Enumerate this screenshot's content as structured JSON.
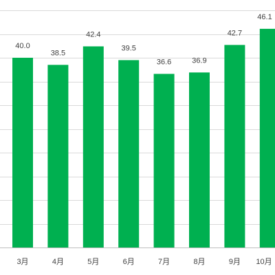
{
  "chart_data": {
    "type": "bar",
    "categories": [
      "3月",
      "4月",
      "5月",
      "6月",
      "7月",
      "8月",
      "9月",
      "10月"
    ],
    "values": [
      40.0,
      38.5,
      42.4,
      39.5,
      36.6,
      36.9,
      42.7,
      46.1
    ],
    "data_labels": [
      "40.0",
      "38.5",
      "42.4",
      "39.5",
      "36.6",
      "36.9",
      "42.7",
      "46.1"
    ],
    "ylim": [
      0,
      50
    ],
    "gridline_interval": 5,
    "grid": true,
    "legend": "none",
    "bar_color": "#00b050",
    "gridline_color": "#d9d9d9",
    "axis_color": "#bfbfbf"
  }
}
